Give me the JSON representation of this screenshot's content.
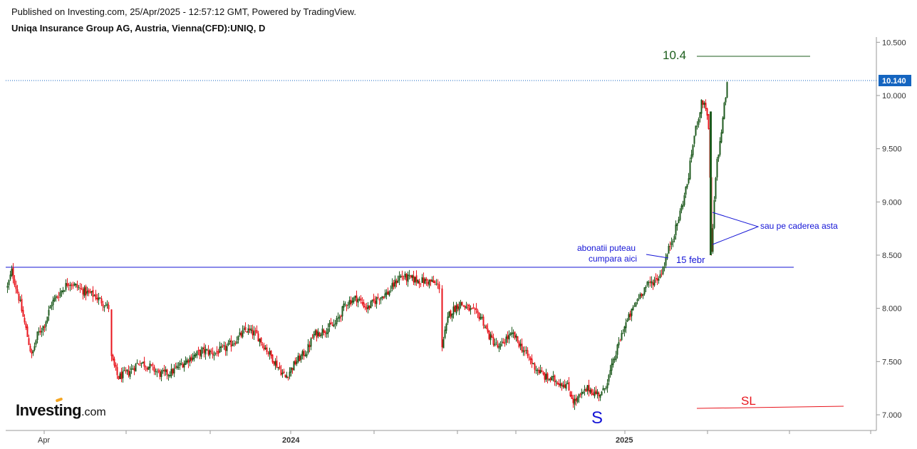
{
  "header": {
    "published": "Published on Investing.com, 25/Apr/2025 - 12:57:12 GMT, Powered by TradingView.",
    "symbol": "Uniqa Insurance Group AG, Austria, Vienna(CFD):UNIQ, D"
  },
  "logo": {
    "name": "Investing",
    "suffix": ".com"
  },
  "colors": {
    "up": "#1e5a1e",
    "down": "#e8141c",
    "annotation_blue": "#1414d6",
    "target_green": "#1d5e1d",
    "sl_red": "#e8141c",
    "last_price_bg": "#1565c0"
  },
  "chart_data": {
    "type": "candlestick",
    "x_labels": [
      "Apr",
      "2024",
      "2025"
    ],
    "y_ticks": [
      "10.500",
      "10.000",
      "9.500",
      "9.000",
      "8.500",
      "8.000",
      "7.500",
      "7.000"
    ],
    "ylim": [
      6.9,
      10.55
    ],
    "last_price": "10.140",
    "annotations": {
      "target_label": "10.4",
      "resistance_label": "abonatii puteau cumpara aici",
      "date_label": "15 febr",
      "drop_label": "sau pe caderea asta",
      "support_label": "S",
      "stoploss_label": "SL"
    },
    "levels": {
      "target": 10.37,
      "resistance": 8.38,
      "last": 10.14
    },
    "price_path": [
      [
        0,
        7.9
      ],
      [
        8,
        8.15
      ],
      [
        16,
        8.35
      ],
      [
        26,
        8.1
      ],
      [
        36,
        7.8
      ],
      [
        44,
        7.55
      ],
      [
        52,
        7.75
      ],
      [
        62,
        7.85
      ],
      [
        72,
        8.05
      ],
      [
        84,
        8.15
      ],
      [
        96,
        8.25
      ],
      [
        108,
        8.2
      ],
      [
        120,
        8.15
      ],
      [
        132,
        8.12
      ],
      [
        145,
        8.05
      ],
      [
        153,
        8.0
      ],
      [
        155,
        7.55
      ],
      [
        165,
        7.35
      ],
      [
        180,
        7.4
      ],
      [
        195,
        7.5
      ],
      [
        210,
        7.45
      ],
      [
        225,
        7.38
      ],
      [
        240,
        7.4
      ],
      [
        255,
        7.48
      ],
      [
        270,
        7.55
      ],
      [
        285,
        7.6
      ],
      [
        300,
        7.58
      ],
      [
        315,
        7.62
      ],
      [
        330,
        7.7
      ],
      [
        345,
        7.8
      ],
      [
        360,
        7.75
      ],
      [
        375,
        7.6
      ],
      [
        390,
        7.45
      ],
      [
        400,
        7.35
      ],
      [
        415,
        7.5
      ],
      [
        430,
        7.6
      ],
      [
        440,
        7.75
      ],
      [
        455,
        7.8
      ],
      [
        470,
        7.85
      ],
      [
        485,
        8.05
      ],
      [
        500,
        8.1
      ],
      [
        515,
        8.0
      ],
      [
        530,
        8.1
      ],
      [
        545,
        8.15
      ],
      [
        560,
        8.3
      ],
      [
        575,
        8.28
      ],
      [
        590,
        8.26
      ],
      [
        605,
        8.25
      ],
      [
        617,
        8.2
      ],
      [
        620,
        7.65
      ],
      [
        630,
        7.95
      ],
      [
        645,
        8.05
      ],
      [
        660,
        7.98
      ],
      [
        675,
        7.92
      ],
      [
        685,
        7.75
      ],
      [
        700,
        7.62
      ],
      [
        710,
        7.72
      ],
      [
        720,
        7.75
      ],
      [
        735,
        7.6
      ],
      [
        750,
        7.45
      ],
      [
        765,
        7.35
      ],
      [
        780,
        7.32
      ],
      [
        795,
        7.28
      ],
      [
        805,
        7.12
      ],
      [
        815,
        7.18
      ],
      [
        825,
        7.25
      ],
      [
        835,
        7.2
      ],
      [
        845,
        7.2
      ],
      [
        855,
        7.38
      ],
      [
        865,
        7.6
      ],
      [
        875,
        7.82
      ],
      [
        885,
        7.95
      ],
      [
        895,
        8.1
      ],
      [
        905,
        8.2
      ],
      [
        915,
        8.25
      ],
      [
        925,
        8.3
      ],
      [
        932,
        8.42
      ],
      [
        940,
        8.6
      ],
      [
        948,
        8.75
      ],
      [
        956,
        8.95
      ],
      [
        965,
        9.2
      ],
      [
        972,
        9.55
      ],
      [
        978,
        9.75
      ],
      [
        985,
        9.95
      ],
      [
        990,
        9.9
      ],
      [
        995,
        9.6
      ],
      [
        998,
        8.5
      ],
      [
        1002,
        9.0
      ],
      [
        1006,
        9.4
      ],
      [
        1010,
        9.55
      ],
      [
        1015,
        9.85
      ],
      [
        1020,
        10.1
      ]
    ]
  }
}
